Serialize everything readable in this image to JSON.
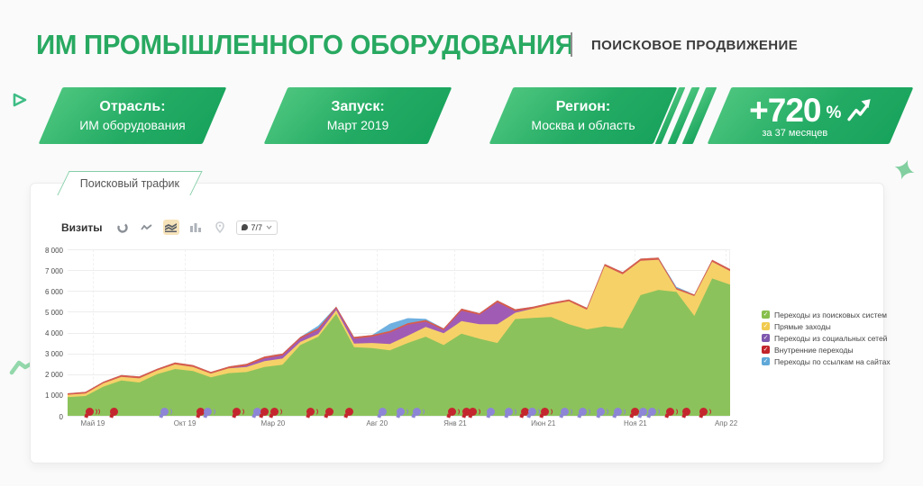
{
  "header": {
    "title": "ИМ ПРОМЫШЛЕННОГО ОБОРУДОВАНИЯ",
    "subtitle": "ПОИСКОВОЕ ПРОДВИЖЕНИЕ"
  },
  "banners": [
    {
      "label": "Отрасль:",
      "value": "ИМ оборудования"
    },
    {
      "label": "Запуск:",
      "value": "Март 2019"
    },
    {
      "label": "Регион:",
      "value": "Москва и область"
    }
  ],
  "kpi": {
    "value": "+720",
    "percent": "%",
    "caption": "за 37 месяцев"
  },
  "panel": {
    "tab_label": "Поисковый трафик"
  },
  "toolbar": {
    "metric_label": "Визиты",
    "period_label": "7/7"
  },
  "chart_data": {
    "type": "area",
    "stacked": true,
    "title": "Поисковый трафик",
    "ylabel": "Визиты",
    "ylim": [
      0,
      8000
    ],
    "ytick_step": 1000,
    "yticks": [
      "8 000",
      "7 000",
      "6 000",
      "5 000",
      "4 000",
      "3 000",
      "2 000",
      "1 000",
      "0"
    ],
    "grid": true,
    "legend_position": "right",
    "x_labels": [
      {
        "text": "Май 19",
        "pos": 3.8
      },
      {
        "text": "Окт 19",
        "pos": 17.7
      },
      {
        "text": "Мар 20",
        "pos": 31.0
      },
      {
        "text": "Авг 20",
        "pos": 46.7
      },
      {
        "text": "Янв 21",
        "pos": 58.5
      },
      {
        "text": "Июн 21",
        "pos": 71.8
      },
      {
        "text": "Ноя 21",
        "pos": 85.7
      },
      {
        "text": "Апр 22",
        "pos": 99.4
      }
    ],
    "series": [
      {
        "name": "Переходы из поисковых систем",
        "color": "#8cc25b",
        "legend_color": "#87bf4d",
        "values": [
          900,
          950,
          1400,
          1700,
          1600,
          2000,
          2250,
          2150,
          1850,
          2050,
          2100,
          2350,
          2450,
          3400,
          3800,
          4900,
          3300,
          3250,
          3150,
          3500,
          3800,
          3400,
          3950,
          3700,
          3500,
          4650,
          4700,
          4750,
          4400,
          4150,
          4300,
          4200,
          5800,
          6050,
          5950,
          4800,
          6600,
          6300
        ]
      },
      {
        "name": "Прямые заходы",
        "color": "#f6d168",
        "legend_color": "#f1cb4f",
        "values": [
          110,
          120,
          160,
          170,
          200,
          180,
          220,
          200,
          180,
          230,
          250,
          280,
          300,
          150,
          130,
          180,
          170,
          250,
          300,
          350,
          470,
          570,
          600,
          700,
          900,
          300,
          450,
          600,
          1100,
          950,
          2900,
          2600,
          1650,
          1450,
          120,
          950,
          800,
          650
        ]
      },
      {
        "name": "Переходы из социальных сетей",
        "color": "#a05cb4",
        "legend_color": "#7e57ad",
        "values": [
          0,
          0,
          0,
          0,
          0,
          0,
          0,
          0,
          0,
          0,
          60,
          130,
          150,
          160,
          200,
          90,
          230,
          300,
          550,
          520,
          250,
          150,
          500,
          450,
          1050,
          80,
          0,
          0,
          0,
          0,
          0,
          0,
          0,
          0,
          0,
          0,
          0,
          0
        ]
      },
      {
        "name": "Внутренние переходы",
        "color": "#d85c4b",
        "legend_color": "#c2242b",
        "values": [
          70,
          80,
          80,
          90,
          90,
          80,
          90,
          90,
          80,
          90,
          90,
          90,
          90,
          80,
          80,
          80,
          90,
          80,
          80,
          80,
          80,
          80,
          100,
          80,
          100,
          90,
          90,
          90,
          90,
          90,
          100,
          100,
          100,
          100,
          70,
          80,
          100,
          100
        ]
      },
      {
        "name": "Переходы по ссылкам на сайтах",
        "color": "#6fb0e0",
        "legend_color": "#5fa8d8",
        "values": [
          0,
          0,
          0,
          0,
          0,
          0,
          0,
          0,
          0,
          0,
          0,
          0,
          0,
          0,
          120,
          0,
          0,
          0,
          350,
          240,
          60,
          0,
          0,
          0,
          0,
          0,
          0,
          0,
          0,
          0,
          0,
          0,
          0,
          0,
          60,
          0,
          0,
          0
        ]
      }
    ]
  },
  "annotations": {
    "colors": {
      "red": "#c4262e",
      "purple": "#8d85d6"
    },
    "markers": [
      {
        "pos": 2.7,
        "color": "red",
        "echoes": 2
      },
      {
        "pos": 6.4,
        "color": "red",
        "echoes": 0
      },
      {
        "pos": 14.0,
        "color": "purple",
        "echoes": 1
      },
      {
        "pos": 19.5,
        "color": "red",
        "echoes": 0
      },
      {
        "pos": 20.6,
        "color": "purple",
        "echoes": 1
      },
      {
        "pos": 24.9,
        "color": "red",
        "echoes": 1
      },
      {
        "pos": 28.0,
        "color": "purple",
        "echoes": 1
      },
      {
        "pos": 29.1,
        "color": "red",
        "echoes": 0
      },
      {
        "pos": 30.6,
        "color": "red",
        "echoes": 1
      },
      {
        "pos": 36.1,
        "color": "red",
        "echoes": 1
      },
      {
        "pos": 38.9,
        "color": "red",
        "echoes": 0
      },
      {
        "pos": 41.9,
        "color": "red",
        "echoes": 0
      },
      {
        "pos": 46.9,
        "color": "purple",
        "echoes": 0
      },
      {
        "pos": 49.7,
        "color": "purple",
        "echoes": 1
      },
      {
        "pos": 52.1,
        "color": "purple",
        "echoes": 1
      },
      {
        "pos": 57.4,
        "color": "red",
        "echoes": 1
      },
      {
        "pos": 59.6,
        "color": "red",
        "echoes": 1
      },
      {
        "pos": 60.6,
        "color": "red",
        "echoes": 1
      },
      {
        "pos": 63.3,
        "color": "purple",
        "echoes": 0
      },
      {
        "pos": 66.0,
        "color": "purple",
        "echoes": 1
      },
      {
        "pos": 68.4,
        "color": "red",
        "echoes": 0
      },
      {
        "pos": 69.5,
        "color": "purple",
        "echoes": 1
      },
      {
        "pos": 71.4,
        "color": "red",
        "echoes": 1
      },
      {
        "pos": 74.4,
        "color": "purple",
        "echoes": 1
      },
      {
        "pos": 77.1,
        "color": "purple",
        "echoes": 1
      },
      {
        "pos": 79.9,
        "color": "purple",
        "echoes": 1
      },
      {
        "pos": 82.4,
        "color": "purple",
        "echoes": 1
      },
      {
        "pos": 85.0,
        "color": "red",
        "echoes": 1
      },
      {
        "pos": 86.2,
        "color": "purple",
        "echoes": 0
      },
      {
        "pos": 87.6,
        "color": "purple",
        "echoes": 1
      },
      {
        "pos": 90.3,
        "color": "red",
        "echoes": 1
      },
      {
        "pos": 92.8,
        "color": "red",
        "echoes": 0
      },
      {
        "pos": 95.4,
        "color": "red",
        "echoes": 1
      }
    ]
  }
}
